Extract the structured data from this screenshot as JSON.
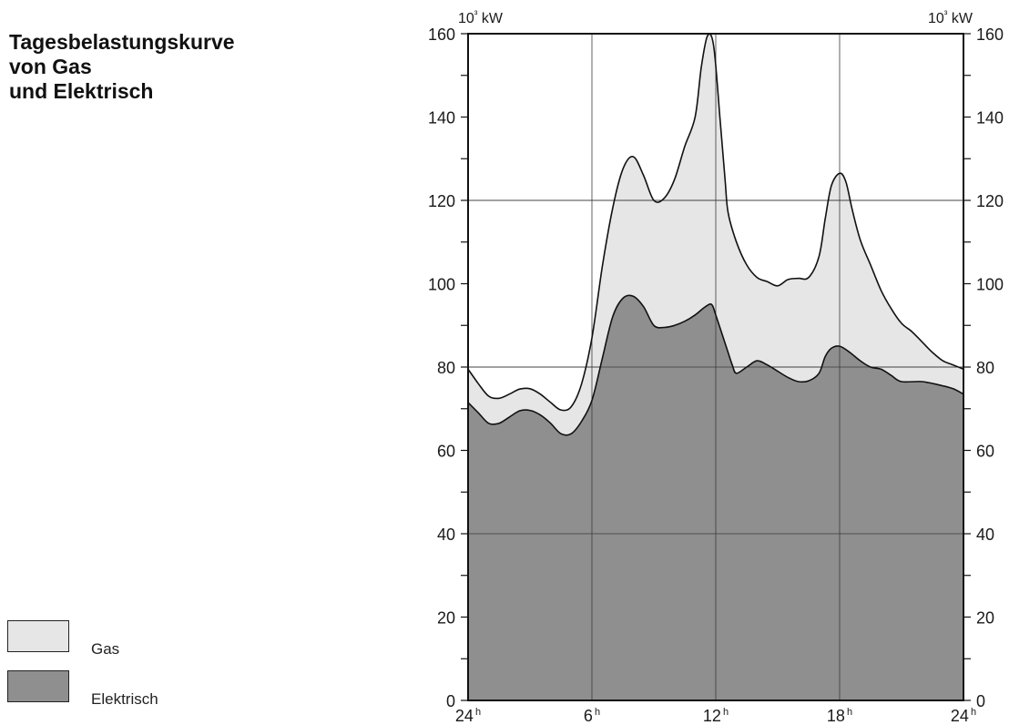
{
  "page": {
    "title_lines": [
      "Tagesbelastungskurve",
      "von Gas",
      "und Elektrisch"
    ]
  },
  "legend": {
    "items": [
      {
        "label": "Gas",
        "color": "#e6e6e6"
      },
      {
        "label": "Elektrisch",
        "color": "#8f8f8f"
      }
    ]
  },
  "chart_data": {
    "type": "area",
    "title": "Tagesbelastungskurve von Gas und Elektrisch",
    "xlabel": "",
    "ylabel": "",
    "y_unit_left": "10³ kW",
    "y_unit_right": "10³ kW",
    "xlim": [
      0,
      24
    ],
    "ylim": [
      0,
      160
    ],
    "x_ticks": [
      {
        "value": 0,
        "label": "24",
        "suffix": "h"
      },
      {
        "value": 6,
        "label": "6",
        "suffix": "h"
      },
      {
        "value": 12,
        "label": "12",
        "suffix": "h"
      },
      {
        "value": 18,
        "label": "18",
        "suffix": "h"
      },
      {
        "value": 24,
        "label": "24",
        "suffix": "h"
      }
    ],
    "y_tick_labels": [
      0,
      20,
      40,
      60,
      80,
      100,
      120,
      140,
      160
    ],
    "y_minor_step": 10,
    "grid": {
      "vertical": [
        6,
        12,
        18
      ],
      "horizontal": [
        40,
        80,
        120
      ]
    },
    "axes_both_sides": true,
    "legend_position": "bottom-left",
    "series": [
      {
        "name": "Gas",
        "color": "#e6e6e6",
        "stacked_top_values": [
          [
            0,
            79.5
          ],
          [
            0.5,
            76
          ],
          [
            1,
            73
          ],
          [
            1.5,
            72.5
          ],
          [
            2,
            73.5
          ],
          [
            2.5,
            74.7
          ],
          [
            3,
            74.8
          ],
          [
            3.5,
            73.5
          ],
          [
            4,
            71.5
          ],
          [
            4.5,
            69.7
          ],
          [
            5,
            70.5
          ],
          [
            5.5,
            76
          ],
          [
            6,
            87
          ],
          [
            6.5,
            104
          ],
          [
            7,
            118
          ],
          [
            7.5,
            127.5
          ],
          [
            8,
            130.5
          ],
          [
            8.5,
            126
          ],
          [
            9,
            120
          ],
          [
            9.5,
            120.5
          ],
          [
            10,
            125
          ],
          [
            10.5,
            133
          ],
          [
            11,
            140
          ],
          [
            11.3,
            152
          ],
          [
            11.6,
            159.5
          ],
          [
            11.9,
            157
          ],
          [
            12.2,
            140
          ],
          [
            12.45,
            125
          ],
          [
            12.6,
            117
          ],
          [
            13,
            110
          ],
          [
            13.5,
            104.5
          ],
          [
            14,
            101.5
          ],
          [
            14.5,
            100.5
          ],
          [
            15,
            99.5
          ],
          [
            15.5,
            101
          ],
          [
            16,
            101.3
          ],
          [
            16.5,
            101.5
          ],
          [
            17,
            106.5
          ],
          [
            17.3,
            115.5
          ],
          [
            17.6,
            123.5
          ],
          [
            18,
            126.5
          ],
          [
            18.3,
            124.5
          ],
          [
            18.6,
            118
          ],
          [
            19,
            110.5
          ],
          [
            19.5,
            104.5
          ],
          [
            20,
            98.5
          ],
          [
            20.5,
            94
          ],
          [
            21,
            90.5
          ],
          [
            21.5,
            88.5
          ],
          [
            22,
            86
          ],
          [
            22.5,
            83.5
          ],
          [
            23,
            81.5
          ],
          [
            23.5,
            80.5
          ],
          [
            24,
            79.5
          ]
        ]
      },
      {
        "name": "Elektrisch",
        "color": "#8f8f8f",
        "values": [
          [
            0,
            71.5
          ],
          [
            0.5,
            69
          ],
          [
            1,
            66.5
          ],
          [
            1.5,
            66.5
          ],
          [
            2,
            68
          ],
          [
            2.5,
            69.5
          ],
          [
            3,
            69.6
          ],
          [
            3.5,
            68.5
          ],
          [
            4,
            66.5
          ],
          [
            4.5,
            64
          ],
          [
            5,
            64
          ],
          [
            5.5,
            67
          ],
          [
            6,
            72
          ],
          [
            6.5,
            82
          ],
          [
            7,
            92
          ],
          [
            7.5,
            96.5
          ],
          [
            8,
            97
          ],
          [
            8.5,
            94.5
          ],
          [
            9,
            90
          ],
          [
            9.5,
            89.5
          ],
          [
            10,
            90
          ],
          [
            10.5,
            91
          ],
          [
            11,
            92.5
          ],
          [
            11.5,
            94.5
          ],
          [
            11.8,
            95
          ],
          [
            12,
            92.5
          ],
          [
            12.5,
            85
          ],
          [
            12.8,
            80.5
          ],
          [
            13,
            78.5
          ],
          [
            13.5,
            80
          ],
          [
            14,
            81.5
          ],
          [
            14.5,
            80.5
          ],
          [
            15,
            79
          ],
          [
            15.5,
            77.5
          ],
          [
            16,
            76.5
          ],
          [
            16.5,
            76.7
          ],
          [
            17,
            78.5
          ],
          [
            17.3,
            82.5
          ],
          [
            17.6,
            84.5
          ],
          [
            18,
            85
          ],
          [
            18.5,
            83.5
          ],
          [
            19,
            81.5
          ],
          [
            19.5,
            80
          ],
          [
            20,
            79.5
          ],
          [
            20.5,
            78
          ],
          [
            21,
            76.5
          ],
          [
            22,
            76.5
          ],
          [
            23,
            75.5
          ],
          [
            23.5,
            74.8
          ],
          [
            24,
            73.5
          ]
        ]
      }
    ]
  }
}
